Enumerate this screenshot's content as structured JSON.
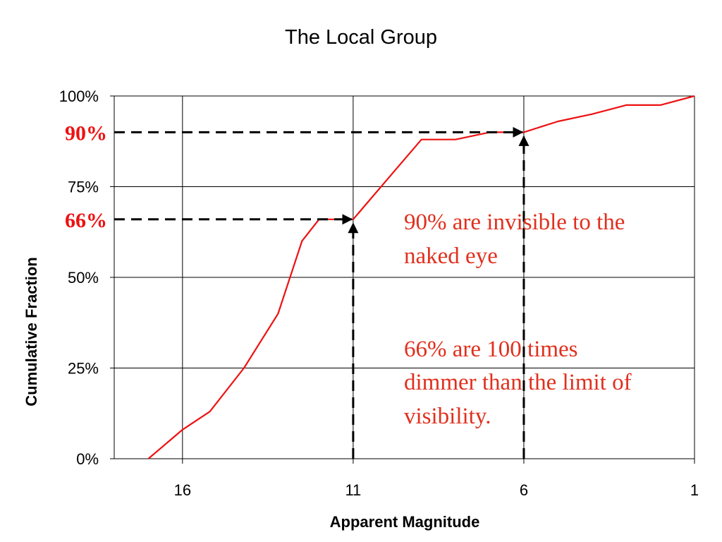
{
  "chart_data": {
    "type": "line",
    "title": "The Local Group",
    "xlabel": "Apparent Magnitude",
    "ylabel": "Cumulative Fraction",
    "x_reversed": true,
    "xlim": [
      18,
      1
    ],
    "ylim": [
      0,
      100
    ],
    "x_ticks": [
      16,
      11,
      6,
      1
    ],
    "x_tick_labels": [
      "16",
      "11",
      "6",
      "1"
    ],
    "y_ticks": [
      0,
      25,
      50,
      75,
      100
    ],
    "y_tick_labels": [
      "0%",
      "25%",
      "50%",
      "75%",
      "100%"
    ],
    "grid": true,
    "series": [
      {
        "color": "#ee1111",
        "x": [
          17,
          16,
          15.2,
          14.2,
          13.2,
          12.5,
          12,
          11,
          10,
          9,
          8,
          7,
          6,
          5,
          4,
          3,
          2,
          1
        ],
        "y": [
          0,
          8,
          13,
          25,
          40,
          60,
          66,
          66,
          77,
          88,
          88,
          90,
          90,
          93,
          95,
          97.5,
          97.5,
          100
        ]
      }
    ],
    "reference_lines": [
      {
        "x": 11,
        "y": 66,
        "label": "66%"
      },
      {
        "x": 6,
        "y": 90,
        "label": "90%"
      }
    ],
    "annotations": [
      "90% are invisible to the naked eye",
      "66% are 100 times dimmer than the limit of visibility."
    ]
  },
  "annotation_lines": {
    "a1_line1": "90% are invisible to the",
    "a1_line2": "naked eye",
    "a2_line1": "66% are 100 times",
    "a2_line2": "dimmer than the limit of",
    "a2_line3": "visibility."
  },
  "colors": {
    "series": "#ee1111",
    "marker_label": "#ee1111",
    "annotation": "#e0301e",
    "reference_line": "#000000",
    "grid": "#000000"
  }
}
